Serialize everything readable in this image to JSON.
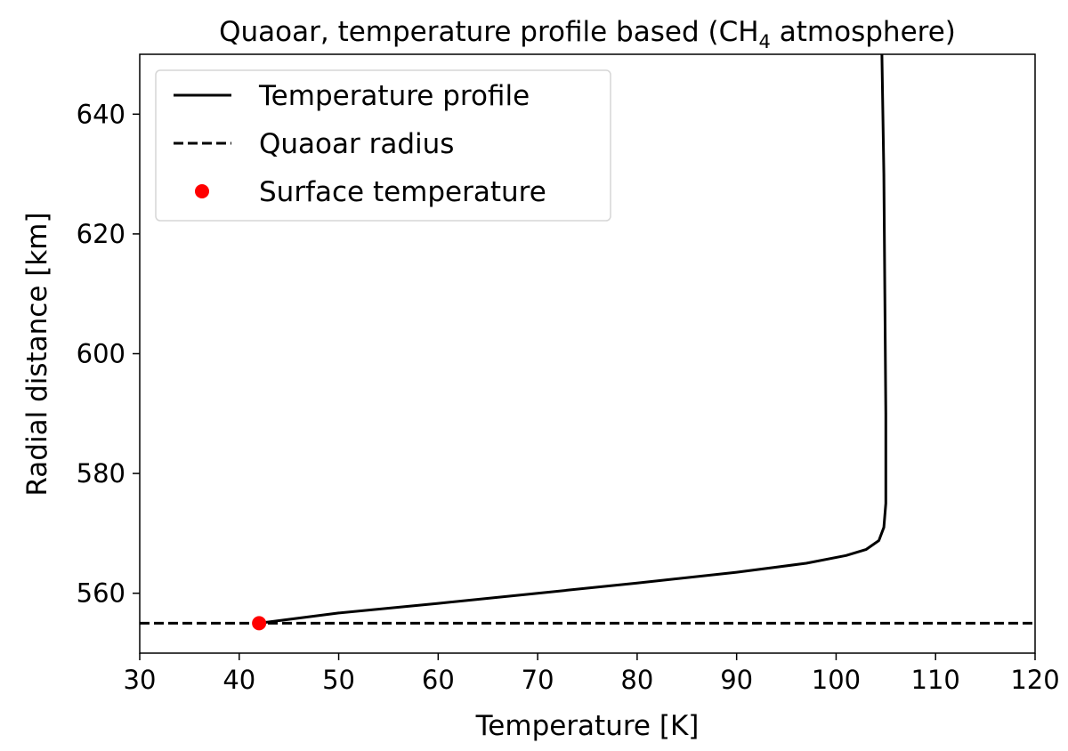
{
  "chart_data": {
    "type": "line",
    "title": {
      "prefix": "Quaoar, temperature profile based (CH",
      "subscript": "4",
      "suffix": " atmosphere)"
    },
    "xlabel": "Temperature [K]",
    "ylabel": "Radial distance [km]",
    "xlim": [
      30,
      120
    ],
    "ylim": [
      550,
      650
    ],
    "xticks": [
      30,
      40,
      50,
      60,
      70,
      80,
      90,
      100,
      110,
      120
    ],
    "yticks": [
      560,
      580,
      600,
      620,
      640
    ],
    "grid": false,
    "legend_position": "top-left",
    "series": [
      {
        "name": "Temperature profile",
        "style": "solid",
        "color": "#000000",
        "points": [
          {
            "x": 42.0,
            "y": 555.0
          },
          {
            "x": 50.0,
            "y": 556.7
          },
          {
            "x": 60.0,
            "y": 558.3
          },
          {
            "x": 70.0,
            "y": 560.0
          },
          {
            "x": 80.0,
            "y": 561.7
          },
          {
            "x": 90.0,
            "y": 563.5
          },
          {
            "x": 97.0,
            "y": 565.0
          },
          {
            "x": 101.0,
            "y": 566.3
          },
          {
            "x": 103.0,
            "y": 567.3
          },
          {
            "x": 104.3,
            "y": 568.8
          },
          {
            "x": 104.8,
            "y": 571.0
          },
          {
            "x": 105.0,
            "y": 575.0
          },
          {
            "x": 105.0,
            "y": 590.0
          },
          {
            "x": 104.9,
            "y": 610.0
          },
          {
            "x": 104.8,
            "y": 630.0
          },
          {
            "x": 104.6,
            "y": 650.0
          }
        ]
      },
      {
        "name": "Quaoar radius",
        "style": "dashed",
        "color": "#000000",
        "y": 555
      },
      {
        "name": "Surface temperature",
        "style": "marker",
        "color": "#ff0000",
        "points": [
          {
            "x": 42.0,
            "y": 555.0
          }
        ]
      }
    ]
  }
}
